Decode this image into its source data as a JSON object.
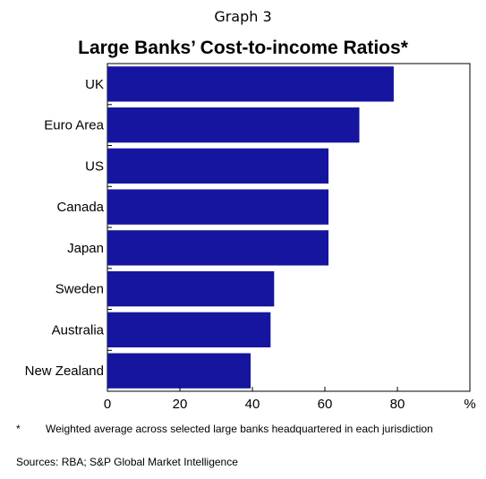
{
  "header": {
    "graph_number": "Graph 3",
    "title": "Large Banks’ Cost-to-income Ratios*"
  },
  "chart_data": {
    "type": "bar",
    "orientation": "horizontal",
    "categories": [
      "UK",
      "Euro Area",
      "US",
      "Canada",
      "Japan",
      "Sweden",
      "Australia",
      "New Zealand"
    ],
    "values": [
      79,
      69.5,
      61,
      61,
      61,
      46,
      45,
      39.5
    ],
    "xlim": [
      0,
      100
    ],
    "xticks": [
      0,
      20,
      40,
      60,
      80
    ],
    "unit_label": "%",
    "bar_color": "#1515a0",
    "grid": false
  },
  "notes": {
    "footnote_marker": "*",
    "footnote_text": "Weighted average across selected large banks headquartered in each jurisdiction",
    "sources": "Sources:  RBA; S&P Global Market Intelligence"
  }
}
